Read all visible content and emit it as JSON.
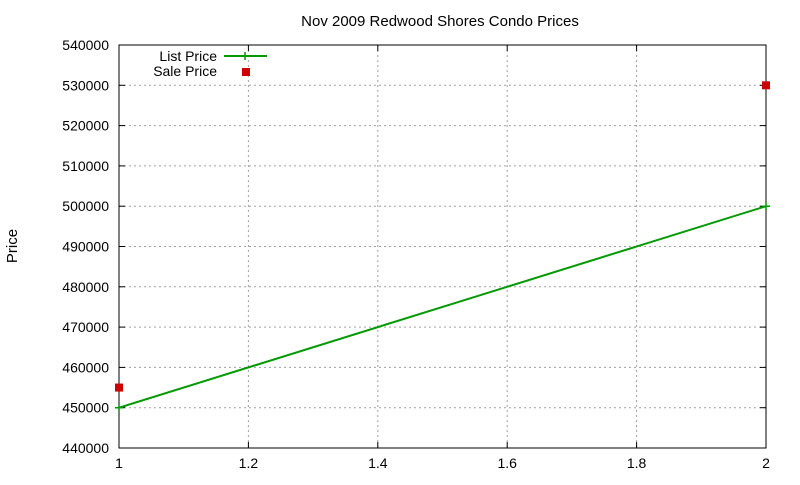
{
  "chart_data": {
    "type": "line",
    "title": "Nov 2009 Redwood Shores Condo Prices",
    "xlabel": "",
    "ylabel": "Price",
    "xlim": [
      1,
      2
    ],
    "ylim": [
      440000,
      540000
    ],
    "x_ticks": [
      "1",
      "1.2",
      "1.4",
      "1.6",
      "1.8",
      "2"
    ],
    "y_ticks": [
      "440000",
      "450000",
      "460000",
      "470000",
      "480000",
      "490000",
      "500000",
      "510000",
      "520000",
      "530000",
      "540000"
    ],
    "grid": true,
    "legend_position": "top-left",
    "series": [
      {
        "name": "List Price",
        "style": "line-with-plus",
        "color": "#009900",
        "x": [
          1,
          2
        ],
        "y": [
          450000,
          500000
        ]
      },
      {
        "name": "Sale Price",
        "style": "square-points",
        "color": "#cc0000",
        "x": [
          1,
          2
        ],
        "y": [
          455000,
          530000
        ]
      }
    ]
  }
}
